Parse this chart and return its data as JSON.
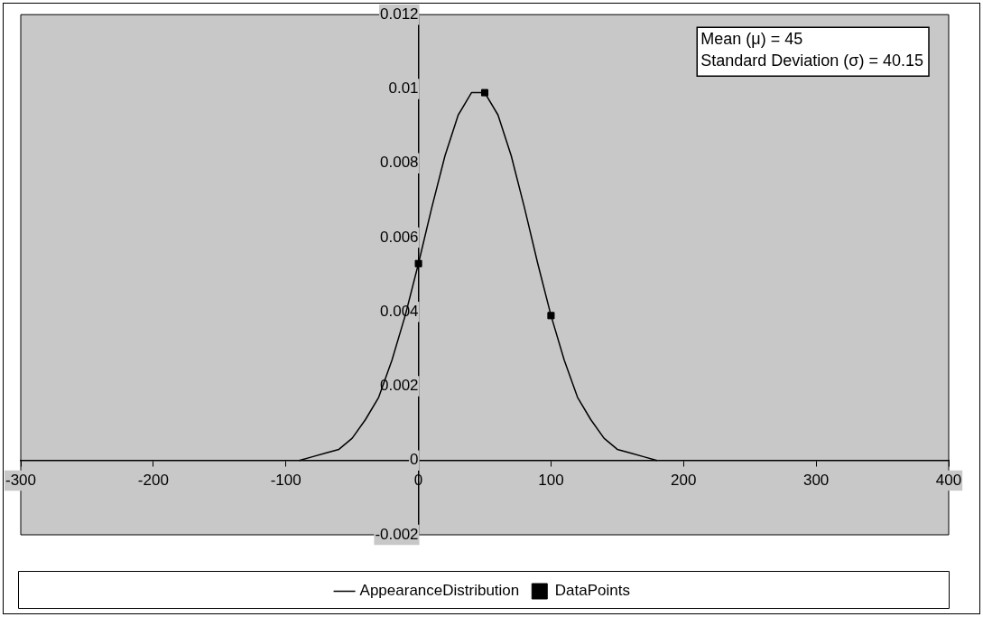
{
  "chart_data": {
    "type": "line",
    "xlim": [
      -300,
      400
    ],
    "ylim": [
      -0.002,
      0.012
    ],
    "xticks": [
      -300,
      -200,
      -100,
      0,
      100,
      200,
      300,
      400
    ],
    "yticks": [
      -0.002,
      0,
      0.002,
      0.004,
      0.006,
      0.008,
      0.01,
      0.012
    ],
    "grid": false,
    "legend": "bottom",
    "line_style": "solid",
    "annotations": [
      "Mean (μ) = 45",
      "Standard Deviation (σ) = 40.15"
    ],
    "series": [
      {
        "name": "AppearanceDistribution",
        "marker": "none",
        "color": "#000000",
        "x": [
          -90,
          -80,
          -70,
          -60,
          -50,
          -40,
          -30,
          -20,
          -10,
          0,
          10,
          20,
          30,
          40,
          45,
          50,
          60,
          70,
          80,
          90,
          100,
          110,
          120,
          130,
          140,
          150,
          160,
          170,
          180
        ],
        "values": [
          0,
          0.0001,
          0.0002,
          0.0003,
          0.0006,
          0.0011,
          0.0017,
          0.0027,
          0.0039,
          0.0053,
          0.0068,
          0.0082,
          0.0093,
          0.0099,
          0.0099,
          0.0099,
          0.0093,
          0.0082,
          0.0068,
          0.0053,
          0.0039,
          0.0027,
          0.0017,
          0.0011,
          0.0006,
          0.0003,
          0.0002,
          0.0001,
          0
        ]
      },
      {
        "name": "DataPoints",
        "type": "scatter",
        "marker": "square",
        "color": "#000000",
        "x": [
          0,
          50,
          100
        ],
        "values": [
          0.0053,
          0.0099,
          0.0039
        ]
      }
    ]
  }
}
